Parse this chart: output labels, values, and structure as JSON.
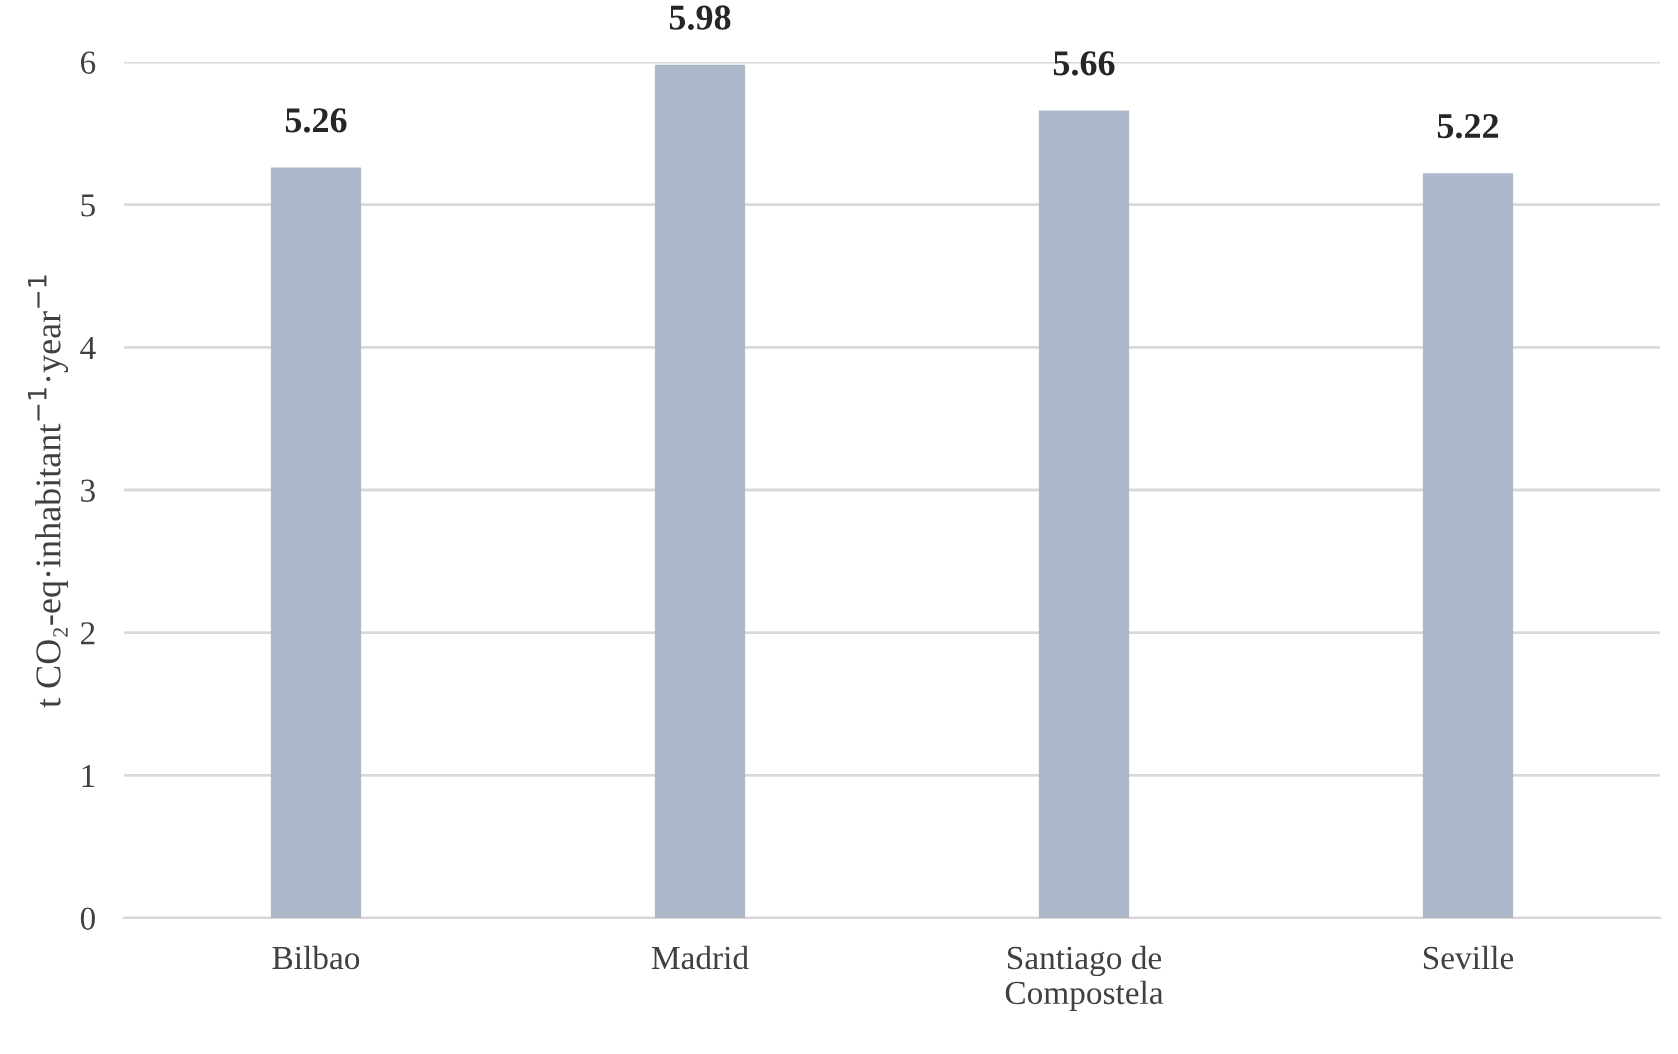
{
  "chart_data": {
    "type": "bar",
    "ylabel": "t CO₂-eq·inhabitant$^{−1}$·year$^{−1}$",
    "categories": [
      "Bilbao",
      "Madrid",
      "Santiago de\nCompostela",
      "Seville"
    ],
    "values": [
      5.26,
      5.98,
      5.66,
      5.22
    ],
    "color": "#adb9ca",
    "ylim": [
      0,
      6
    ],
    "yticks": [
      0,
      1,
      2,
      3,
      4,
      5,
      6
    ],
    "grid": "y",
    "data_labels": true
  }
}
